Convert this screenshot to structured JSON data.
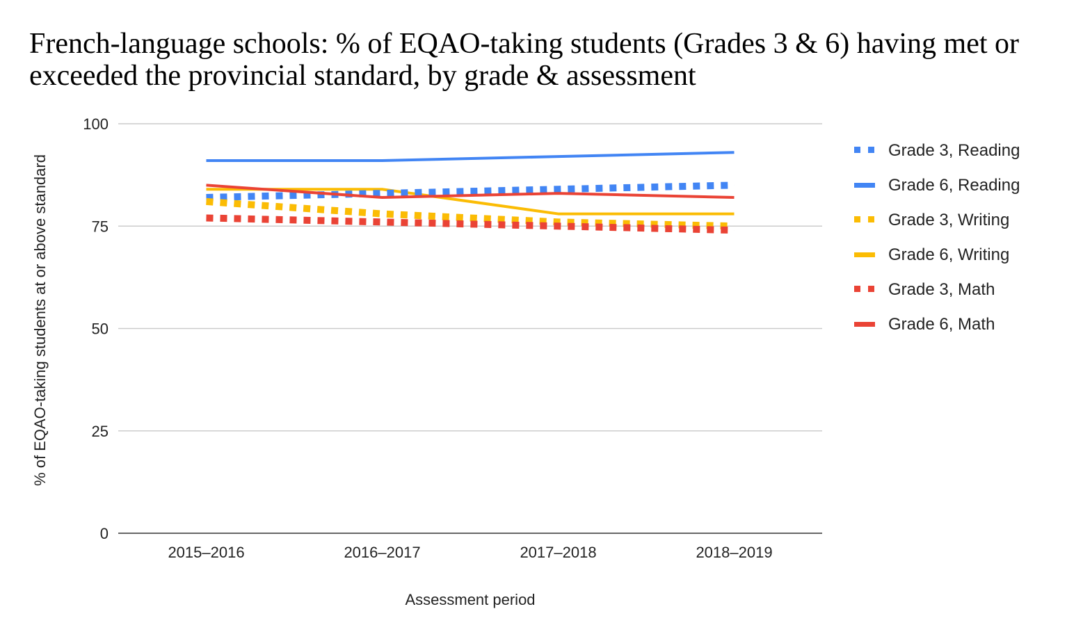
{
  "chart_data": {
    "type": "line",
    "title": "French-language schools: % of EQAO-taking students (Grades 3 & 6) having met or exceeded the provincial standard, by grade & assessment",
    "xlabel": "Assessment period",
    "ylabel": "% of EQAO-taking students at or above standard",
    "categories": [
      "2015–2016",
      "2016–2017",
      "2017–2018",
      "2018–2019"
    ],
    "ylim": [
      0,
      100
    ],
    "yticks": [
      0,
      25,
      50,
      75,
      100
    ],
    "grid": true,
    "legend_position": "right",
    "series": [
      {
        "name": "Grade 3, Reading",
        "color": "#4285f4",
        "style": "dotted",
        "values": [
          82,
          83,
          84,
          85
        ]
      },
      {
        "name": "Grade 6, Reading",
        "color": "#4285f4",
        "style": "solid",
        "values": [
          91,
          91,
          92,
          93
        ]
      },
      {
        "name": "Grade 3, Writing",
        "color": "#fbbc04",
        "style": "dotted",
        "values": [
          81,
          78,
          76,
          75
        ]
      },
      {
        "name": "Grade 6, Writing",
        "color": "#fbbc04",
        "style": "solid",
        "values": [
          84,
          84,
          78,
          78
        ]
      },
      {
        "name": "Grade 3, Math",
        "color": "#ea4335",
        "style": "dotted",
        "values": [
          77,
          76,
          75,
          74
        ]
      },
      {
        "name": "Grade 6, Math",
        "color": "#ea4335",
        "style": "solid",
        "values": [
          85,
          82,
          83,
          82
        ]
      }
    ]
  }
}
